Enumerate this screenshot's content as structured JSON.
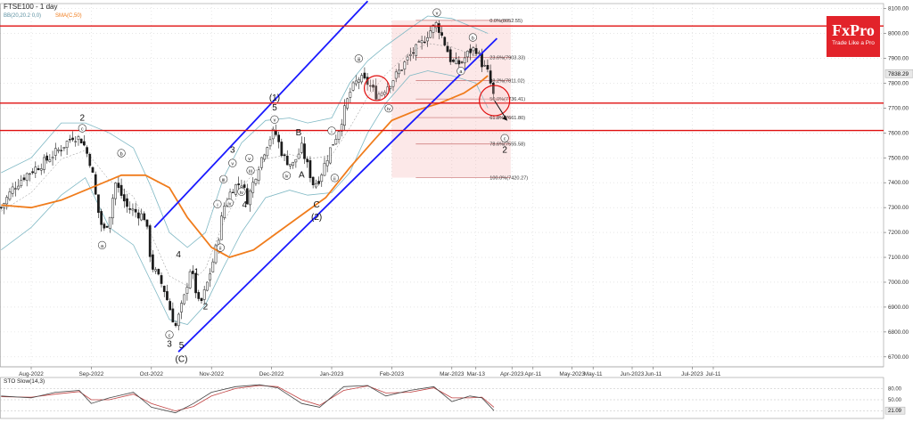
{
  "header": {
    "symbol_line": "FTSE100 - 1 day",
    "indicator_bb": "BB(20,20.2 0,0)",
    "indicator_sma": "SMA(C,50)"
  },
  "brand": {
    "logo": "FxPro",
    "tagline": "Trade Like a Pro",
    "color": "#e2232a"
  },
  "colors": {
    "price": "#1a1a1a",
    "sma": "#f07c1c",
    "bands": "#7fb8c4",
    "channel": "#1a1aff",
    "levels": "#e01010",
    "fib": "#c87070",
    "fib_zone": "rgba(240,150,150,0.22)",
    "sto_k": "#444444",
    "sto_d": "#c04040",
    "up_candle": "#2e9a2e",
    "down_candle": "#c03030"
  },
  "chart_data": {
    "type": "candlestick",
    "title": "FTSE100 - 1 day",
    "x_tick_labels": [
      "Aug-2022",
      "Sep-2022",
      "Oct-2022",
      "Nov-2022",
      "Dec-2022",
      "Jan-2023",
      "Feb-2023",
      "Mar-2023",
      "Mar-13",
      "Apr-2023",
      "Apr-11",
      "May-2023",
      "May-11",
      "Jun-2023",
      "Jun-11",
      "Jul-2023",
      "Jul-11"
    ],
    "x_tick_positions": [
      0.0,
      1.0,
      2.0,
      3.0,
      4.0,
      5.0,
      6.0,
      7.0,
      7.4,
      8.0,
      8.35,
      9.0,
      9.35,
      10.0,
      10.35,
      11.0,
      11.35
    ],
    "ylim": [
      6660,
      8120
    ],
    "y_ticks": [
      6700,
      6800,
      6900,
      7000,
      7100,
      7200,
      7300,
      7400,
      7500,
      7600,
      7700,
      7800,
      7900,
      8000,
      8100
    ],
    "y_tick_labels": [
      "6700.00",
      "6800.00",
      "6900.00",
      "7000.00",
      "7100.00",
      "7200.00",
      "7300.00",
      "7400.00",
      "7500.00",
      "7600.00",
      "7700.00",
      "7800.00",
      "7900.00",
      "8000.00",
      "8100.00"
    ],
    "current_price_label": "7838.29",
    "current_price": 7838.29,
    "price_path": [
      [
        -0.5,
        7300
      ],
      [
        -0.3,
        7380
      ],
      [
        -0.1,
        7430
      ],
      [
        0.2,
        7480
      ],
      [
        0.5,
        7540
      ],
      [
        0.7,
        7590
      ],
      [
        0.85,
        7570
      ],
      [
        1.0,
        7470
      ],
      [
        1.1,
        7300
      ],
      [
        1.2,
        7200
      ],
      [
        1.3,
        7260
      ],
      [
        1.4,
        7400
      ],
      [
        1.6,
        7300
      ],
      [
        1.9,
        7260
      ],
      [
        2.0,
        7070
      ],
      [
        2.2,
        6980
      ],
      [
        2.4,
        6820
      ],
      [
        2.55,
        6940
      ],
      [
        2.65,
        7060
      ],
      [
        2.8,
        6900
      ],
      [
        2.9,
        6970
      ],
      [
        3.0,
        7060
      ],
      [
        3.1,
        7160
      ],
      [
        3.2,
        7300
      ],
      [
        3.35,
        7380
      ],
      [
        3.5,
        7400
      ],
      [
        3.6,
        7330
      ],
      [
        3.8,
        7480
      ],
      [
        3.95,
        7570
      ],
      [
        4.05,
        7610
      ],
      [
        4.2,
        7500
      ],
      [
        4.35,
        7470
      ],
      [
        4.5,
        7540
      ],
      [
        4.7,
        7390
      ],
      [
        4.8,
        7420
      ],
      [
        5.0,
        7550
      ],
      [
        5.1,
        7600
      ],
      [
        5.3,
        7760
      ],
      [
        5.45,
        7820
      ],
      [
        5.6,
        7800
      ],
      [
        5.75,
        7750
      ],
      [
        5.85,
        7770
      ],
      [
        6.0,
        7810
      ],
      [
        6.1,
        7840
      ],
      [
        6.3,
        7910
      ],
      [
        6.5,
        7960
      ],
      [
        6.6,
        8000
      ],
      [
        6.75,
        8040
      ],
      [
        6.9,
        7950
      ],
      [
        7.0,
        7880
      ],
      [
        7.15,
        7880
      ],
      [
        7.3,
        7930
      ],
      [
        7.4,
        7940
      ],
      [
        7.5,
        7880
      ],
      [
        7.6,
        7840
      ],
      [
        7.7,
        7740
      ]
    ],
    "sma_path": [
      [
        -0.5,
        7310
      ],
      [
        0.0,
        7300
      ],
      [
        0.5,
        7330
      ],
      [
        1.0,
        7380
      ],
      [
        1.5,
        7430
      ],
      [
        1.9,
        7430
      ],
      [
        2.3,
        7380
      ],
      [
        2.6,
        7260
      ],
      [
        3.0,
        7140
      ],
      [
        3.3,
        7100
      ],
      [
        3.7,
        7130
      ],
      [
        4.1,
        7200
      ],
      [
        4.5,
        7270
      ],
      [
        4.9,
        7340
      ],
      [
        5.3,
        7460
      ],
      [
        5.7,
        7570
      ],
      [
        6.0,
        7650
      ],
      [
        6.4,
        7690
      ],
      [
        6.8,
        7720
      ],
      [
        7.2,
        7760
      ],
      [
        7.45,
        7800
      ],
      [
        7.6,
        7830
      ]
    ],
    "bb_upper": [
      [
        -0.5,
        7440
      ],
      [
        0.0,
        7500
      ],
      [
        0.5,
        7640
      ],
      [
        0.9,
        7640
      ],
      [
        1.3,
        7600
      ],
      [
        1.7,
        7540
      ],
      [
        2.0,
        7380
      ],
      [
        2.3,
        7200
      ],
      [
        2.6,
        7140
      ],
      [
        2.9,
        7200
      ],
      [
        3.2,
        7420
      ],
      [
        3.5,
        7560
      ],
      [
        3.9,
        7650
      ],
      [
        4.3,
        7660
      ],
      [
        4.6,
        7640
      ],
      [
        5.0,
        7660
      ],
      [
        5.3,
        7800
      ],
      [
        5.6,
        7890
      ],
      [
        5.9,
        7950
      ],
      [
        6.3,
        8020
      ],
      [
        6.6,
        8070
      ],
      [
        7.0,
        8060
      ],
      [
        7.4,
        8020
      ],
      [
        7.6,
        8000
      ]
    ],
    "bb_lower": [
      [
        -0.5,
        7130
      ],
      [
        0.0,
        7220
      ],
      [
        0.5,
        7350
      ],
      [
        0.9,
        7420
      ],
      [
        1.3,
        7220
      ],
      [
        1.7,
        7150
      ],
      [
        2.0,
        7000
      ],
      [
        2.3,
        6850
      ],
      [
        2.6,
        6830
      ],
      [
        2.9,
        6910
      ],
      [
        3.2,
        7060
      ],
      [
        3.5,
        7200
      ],
      [
        3.9,
        7340
      ],
      [
        4.3,
        7370
      ],
      [
        4.6,
        7350
      ],
      [
        5.0,
        7360
      ],
      [
        5.3,
        7440
      ],
      [
        5.6,
        7600
      ],
      [
        5.9,
        7720
      ],
      [
        6.3,
        7830
      ],
      [
        6.6,
        7850
      ],
      [
        7.0,
        7830
      ],
      [
        7.4,
        7800
      ],
      [
        7.6,
        7700
      ]
    ],
    "channel_upper": [
      [
        2.05,
        7220
      ],
      [
        5.6,
        8130
      ]
    ],
    "channel_lower": [
      [
        2.45,
        6720
      ],
      [
        7.75,
        7980
      ]
    ],
    "horizontal_levels": [
      {
        "value": 8030,
        "label": ""
      },
      {
        "value": 7720,
        "label": ""
      },
      {
        "value": 7610,
        "label": ""
      }
    ],
    "fib_box": {
      "x0": 6.0,
      "x1": 7.98,
      "y0": 7420.27,
      "y1": 8052.55
    },
    "fibonacci_levels": [
      {
        "label": "0.0%(8052.55)",
        "value": 8052.55
      },
      {
        "label": "23.6%(7903.33)",
        "value": 7903.33
      },
      {
        "label": "38.2%(7811.02)",
        "value": 7811.02
      },
      {
        "label": "50.0%(7736.41)",
        "value": 7736.41
      },
      {
        "label": "61.8%(7661.80)",
        "value": 7661.8
      },
      {
        "label": "78.6%(7555.58)",
        "value": 7555.58
      },
      {
        "label": "100.0%(7420.27)",
        "value": 7420.27
      }
    ],
    "circles": [
      {
        "x": 5.75,
        "y": 7780,
        "r": 14
      },
      {
        "x": 7.71,
        "y": 7730,
        "r": 17
      }
    ],
    "forecast_arrow": [
      [
        7.71,
        7730
      ],
      [
        7.92,
        7650
      ]
    ],
    "wave_labels": [
      {
        "text": "2",
        "x": 0.85,
        "y": 7650
      },
      {
        "text": "c",
        "x": 0.85,
        "y": 7610,
        "circled": true
      },
      {
        "text": "b",
        "x": 1.5,
        "y": 7510,
        "circled": true
      },
      {
        "text": "a",
        "x": 1.18,
        "y": 7140,
        "circled": true
      },
      {
        "text": "4",
        "x": 2.45,
        "y": 7100
      },
      {
        "text": "1",
        "x": 2.75,
        "y": 7030
      },
      {
        "text": "2",
        "x": 2.9,
        "y": 6890
      },
      {
        "text": "c",
        "x": 2.3,
        "y": 6780,
        "circled": true
      },
      {
        "text": "3",
        "x": 2.3,
        "y": 6740
      },
      {
        "text": "5",
        "x": 2.5,
        "y": 6735
      },
      {
        "text": "(C)",
        "x": 2.5,
        "y": 6680
      },
      {
        "text": "i",
        "x": 3.1,
        "y": 7305,
        "circled": true
      },
      {
        "text": "ii",
        "x": 3.15,
        "y": 7130,
        "circled": true
      },
      {
        "text": "3",
        "x": 3.35,
        "y": 7520
      },
      {
        "text": "v",
        "x": 3.35,
        "y": 7470,
        "circled": true
      },
      {
        "text": "iii",
        "x": 3.2,
        "y": 7405,
        "circled": true
      },
      {
        "text": "iv",
        "x": 3.3,
        "y": 7310,
        "circled": true
      },
      {
        "text": "4",
        "x": 3.55,
        "y": 7300
      },
      {
        "text": "iii",
        "x": 3.65,
        "y": 7440,
        "circled": true
      },
      {
        "text": "iv",
        "x": 3.5,
        "y": 7355,
        "circled": true
      },
      {
        "text": "v",
        "x": 3.63,
        "y": 7490,
        "circled": true
      },
      {
        "text": "(1)",
        "x": 4.05,
        "y": 7730
      },
      {
        "text": "5",
        "x": 4.05,
        "y": 7690
      },
      {
        "text": "v",
        "x": 4.05,
        "y": 7645,
        "circled": true
      },
      {
        "text": "B",
        "x": 4.45,
        "y": 7590
      },
      {
        "text": "iv",
        "x": 4.25,
        "y": 7420,
        "circled": true
      },
      {
        "text": "A",
        "x": 4.5,
        "y": 7420
      },
      {
        "text": "C",
        "x": 4.75,
        "y": 7300
      },
      {
        "text": "(2)",
        "x": 4.75,
        "y": 7250
      },
      {
        "text": "i",
        "x": 5.0,
        "y": 7600,
        "circled": true
      },
      {
        "text": "ii",
        "x": 5.05,
        "y": 7410,
        "circled": true
      },
      {
        "text": "iii",
        "x": 5.45,
        "y": 7890,
        "circled": true
      },
      {
        "text": "iv",
        "x": 5.95,
        "y": 7690,
        "circled": true
      },
      {
        "text": "v",
        "x": 6.75,
        "y": 8075,
        "circled": true
      },
      {
        "text": "b",
        "x": 7.35,
        "y": 7975,
        "circled": true
      },
      {
        "text": "a",
        "x": 7.15,
        "y": 7840,
        "circled": true
      },
      {
        "text": "c",
        "x": 7.88,
        "y": 7570,
        "circled": true
      },
      {
        "text": "2",
        "x": 7.88,
        "y": 7520
      }
    ]
  },
  "stochastic": {
    "title": "STO Slow(14,3)",
    "y_ticks": [
      80,
      50,
      20
    ],
    "y_tick_labels": [
      "80.00",
      "50.00",
      "20.00"
    ],
    "current_label": "21.09",
    "k": [
      [
        -0.5,
        60
      ],
      [
        0.0,
        55
      ],
      [
        0.4,
        70
      ],
      [
        0.8,
        75
      ],
      [
        1.0,
        40
      ],
      [
        1.3,
        55
      ],
      [
        1.7,
        70
      ],
      [
        2.0,
        30
      ],
      [
        2.4,
        15
      ],
      [
        2.7,
        40
      ],
      [
        3.0,
        70
      ],
      [
        3.4,
        85
      ],
      [
        3.8,
        90
      ],
      [
        4.1,
        82
      ],
      [
        4.5,
        40
      ],
      [
        4.8,
        30
      ],
      [
        5.2,
        85
      ],
      [
        5.6,
        88
      ],
      [
        5.9,
        60
      ],
      [
        6.3,
        75
      ],
      [
        6.7,
        85
      ],
      [
        7.0,
        45
      ],
      [
        7.3,
        60
      ],
      [
        7.5,
        55
      ],
      [
        7.7,
        21
      ]
    ],
    "d": [
      [
        -0.5,
        58
      ],
      [
        0.0,
        57
      ],
      [
        0.4,
        65
      ],
      [
        0.8,
        72
      ],
      [
        1.0,
        50
      ],
      [
        1.3,
        50
      ],
      [
        1.7,
        65
      ],
      [
        2.0,
        40
      ],
      [
        2.4,
        20
      ],
      [
        2.7,
        32
      ],
      [
        3.0,
        60
      ],
      [
        3.4,
        80
      ],
      [
        3.8,
        88
      ],
      [
        4.1,
        85
      ],
      [
        4.5,
        50
      ],
      [
        4.8,
        35
      ],
      [
        5.2,
        75
      ],
      [
        5.6,
        87
      ],
      [
        5.9,
        68
      ],
      [
        6.3,
        70
      ],
      [
        6.7,
        82
      ],
      [
        7.0,
        55
      ],
      [
        7.3,
        55
      ],
      [
        7.5,
        57
      ],
      [
        7.7,
        30
      ]
    ]
  }
}
